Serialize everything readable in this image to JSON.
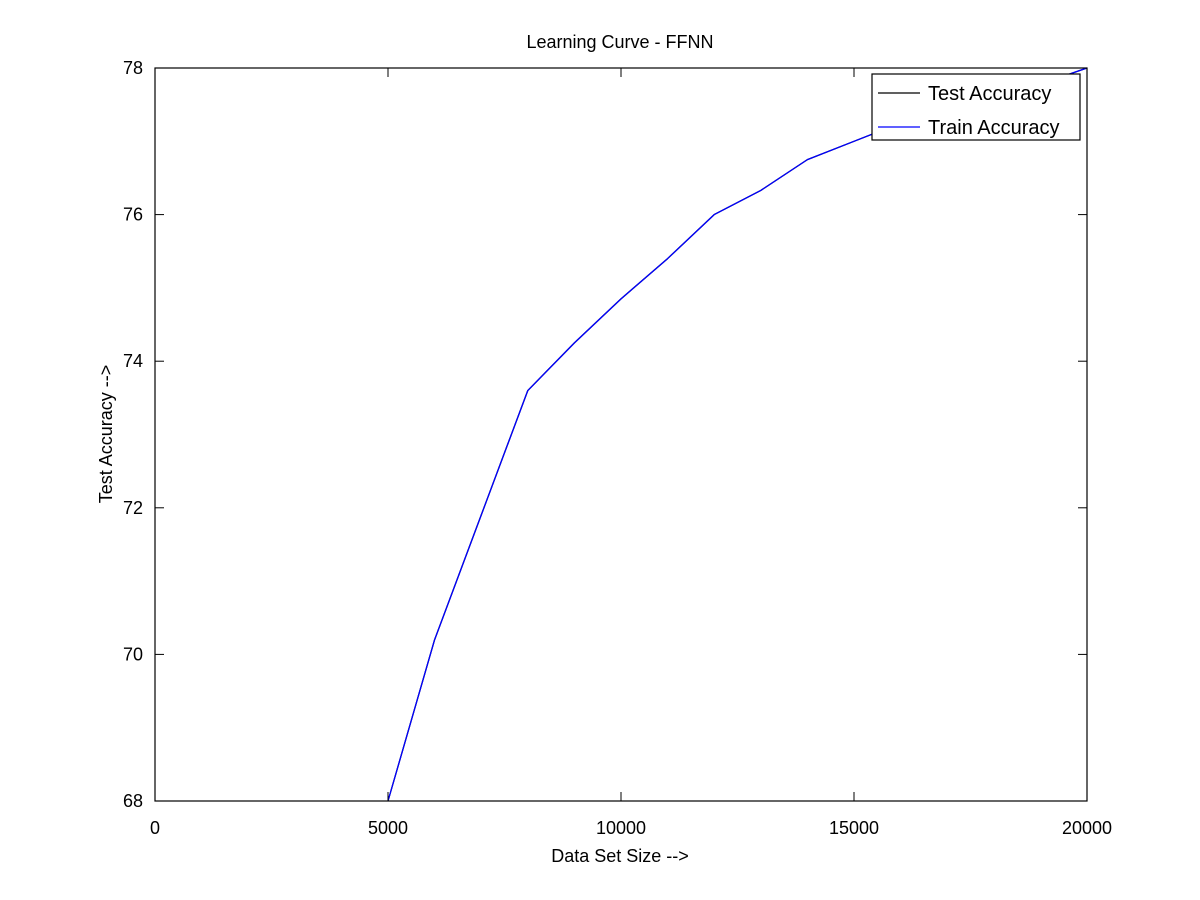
{
  "chart_data": {
    "type": "line",
    "title": "Learning Curve - FFNN",
    "xlabel": "Data Set Size -->",
    "ylabel": "Test Accuracy -->",
    "xlim": [
      0,
      20000
    ],
    "ylim": [
      68,
      78
    ],
    "xticks": [
      0,
      5000,
      10000,
      15000,
      20000
    ],
    "yticks": [
      68,
      70,
      72,
      74,
      76,
      78
    ],
    "grid": false,
    "legend_position": "top-right",
    "series": [
      {
        "name": "Test Accuracy",
        "color": "#000000",
        "x": [
          5000,
          6000,
          7000,
          8000,
          9000,
          10000,
          11000,
          12000,
          13000,
          14000,
          15000,
          16000,
          17000,
          18000,
          19000,
          20000
        ],
        "y": [
          68.0,
          70.2,
          71.9,
          73.6,
          74.25,
          74.85,
          75.4,
          76.0,
          76.33,
          76.75,
          77.0,
          77.25,
          77.45,
          77.62,
          77.78,
          78.0
        ]
      },
      {
        "name": "Train Accuracy",
        "color": "#0000ff",
        "x": [
          5000,
          6000,
          7000,
          8000,
          9000,
          10000,
          11000,
          12000,
          13000,
          14000,
          15000,
          16000,
          17000,
          18000,
          19000,
          20000
        ],
        "y": [
          68.0,
          70.2,
          71.9,
          73.6,
          74.25,
          74.85,
          75.4,
          76.0,
          76.33,
          76.75,
          77.0,
          77.25,
          77.45,
          77.62,
          77.78,
          78.0
        ]
      }
    ]
  }
}
